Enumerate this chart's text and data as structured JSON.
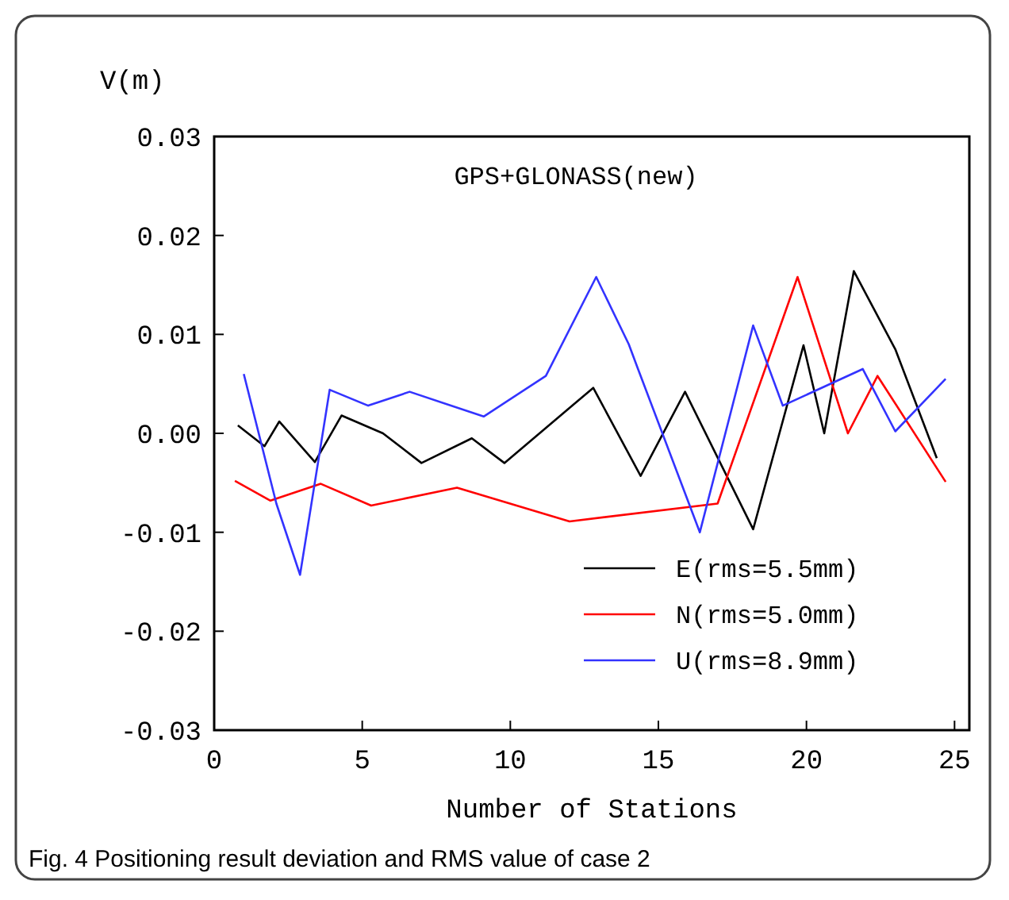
{
  "chart_data": {
    "type": "line",
    "title": "GPS+GLONASS(new)",
    "xlabel": "Number of Stations",
    "ylabel": "V(m)",
    "annotations": [
      "Fig. 4 Positioning result deviation and RMS value of case 2"
    ],
    "xlim": [
      0,
      25.5
    ],
    "xticks": [
      0,
      5,
      10,
      15,
      20,
      25
    ],
    "ylim": [
      -0.03,
      0.03
    ],
    "yticks": [
      -0.03,
      -0.02,
      -0.01,
      {
        "value": 0,
        "label": "0.00"
      },
      0.01,
      0.02,
      0.03
    ],
    "grid": false,
    "legend": "bottom right",
    "line_style": "solid",
    "series": [
      {
        "name": "E(rms=5.5mm)",
        "color": "#000000",
        "x": [
          0.8,
          1.7,
          2.2,
          3.4,
          4.3,
          5.7,
          7.0,
          8.7,
          9.8,
          12.8,
          14.4,
          15.9,
          18.2,
          19.9,
          20.6,
          21.6,
          23.0,
          24.4
        ],
        "values": [
          0.0008,
          -0.0013,
          0.0012,
          -0.0029,
          0.0018,
          0,
          -0.003,
          -0.0005,
          -0.003,
          0.0046,
          -0.0043,
          0.0042,
          -0.0097,
          0.0089,
          0,
          0.0164,
          0.0085,
          -0.0025
        ]
      },
      {
        "name": "N(rms=5.0mm)",
        "color": "#ff0000",
        "x": [
          0.7,
          1.9,
          3.6,
          5.3,
          8.2,
          12.0,
          17.0,
          19.7,
          21.4,
          22.4,
          24.7
        ],
        "values": [
          -0.0048,
          -0.0068,
          -0.0051,
          -0.0073,
          -0.0055,
          -0.0089,
          -0.0071,
          0.0158,
          0,
          0.0058,
          -0.0049
        ]
      },
      {
        "name": "U(rms=8.9mm)",
        "color": "#3333ff",
        "x": [
          1.0,
          2.1,
          2.9,
          3.9,
          5.2,
          6.6,
          9.1,
          11.2,
          12.9,
          14.0,
          14.3,
          16.4,
          18.2,
          19.2,
          21.9,
          23.0,
          24.7
        ],
        "values": [
          0.006,
          -0.0071,
          -0.0143,
          0.0044,
          0.0028,
          0.0042,
          0.0017,
          0.0058,
          0.0158,
          0.009,
          0.0066,
          -0.01,
          0.0109,
          0.0028,
          0.0065,
          0.0002,
          0.0055
        ]
      }
    ]
  }
}
